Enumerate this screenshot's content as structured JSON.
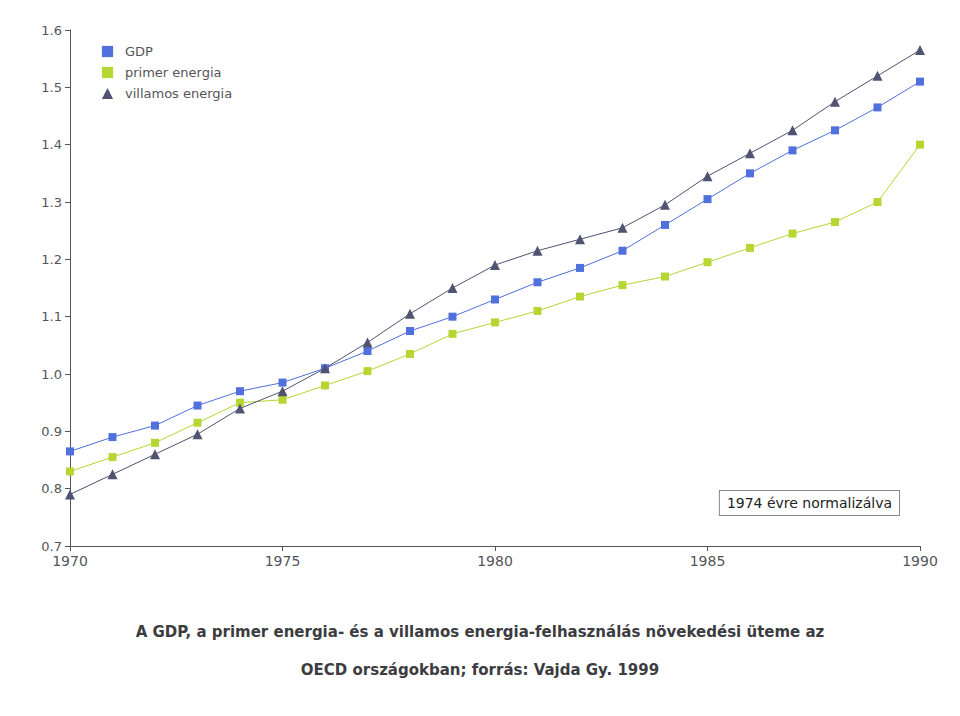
{
  "chart_data": {
    "type": "line",
    "title": "A GDP, a primer energia- és a villamos energia-felhasználás növekedési üteme az",
    "subtitle": "OECD országokban; forrás: Vajda Gy. 1999",
    "annotations": [
      "1974 évre normalizálva"
    ],
    "x": [
      1970,
      1971,
      1972,
      1973,
      1974,
      1975,
      1976,
      1977,
      1978,
      1979,
      1980,
      1981,
      1982,
      1983,
      1984,
      1985,
      1986,
      1987,
      1988,
      1989,
      1990
    ],
    "series": [
      {
        "name": "GDP",
        "marker": "square",
        "values": [
          0.865,
          0.89,
          0.91,
          0.945,
          0.97,
          0.985,
          1.01,
          1.04,
          1.075,
          1.1,
          1.13,
          1.16,
          1.185,
          1.215,
          1.26,
          1.305,
          1.35,
          1.39,
          1.425,
          1.465,
          1.51
        ]
      },
      {
        "name": "primer energia",
        "marker": "square",
        "values": [
          0.83,
          0.855,
          0.88,
          0.915,
          0.95,
          0.955,
          0.98,
          1.005,
          1.035,
          1.07,
          1.09,
          1.11,
          1.135,
          1.155,
          1.17,
          1.195,
          1.22,
          1.245,
          1.265,
          1.3,
          1.4
        ]
      },
      {
        "name": "villamos energia",
        "marker": "triangle",
        "values": [
          0.79,
          0.825,
          0.86,
          0.895,
          0.94,
          0.97,
          1.01,
          1.055,
          1.105,
          1.15,
          1.19,
          1.215,
          1.235,
          1.255,
          1.295,
          1.345,
          1.385,
          1.425,
          1.475,
          1.52,
          1.565
        ]
      }
    ],
    "xlim": [
      1970,
      1990
    ],
    "xticks": [
      1970,
      1975,
      1980,
      1985,
      1990
    ],
    "ylim": [
      0.7,
      1.6
    ],
    "yticks": [
      0.7,
      0.8,
      0.9,
      {
        "value": 1.0,
        "label": "1.0"
      },
      1.1,
      1.2,
      1.3,
      1.4,
      1.5,
      1.6
    ],
    "grid": false,
    "legend": "upper left"
  }
}
